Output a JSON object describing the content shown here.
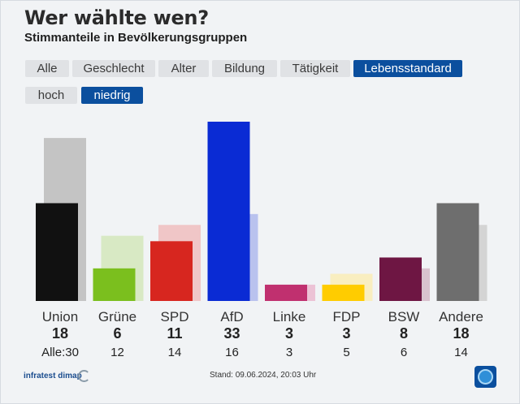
{
  "title": "Wer wählte wen?",
  "subtitle": "Stimmanteile in Bevölkerungsgruppen",
  "tabs": [
    "Alle",
    "Geschlecht",
    "Alter",
    "Bildung",
    "Tätigkeit",
    "Lebensstandard"
  ],
  "active_tab": "Lebensstandard",
  "subtabs": [
    "hoch",
    "niedrig"
  ],
  "active_subtab": "niedrig",
  "alle_label": "Alle:",
  "source": "infratest dimap",
  "stand": "Stand: 09.06.2024, 20:03 Uhr",
  "chart_data": {
    "type": "bar",
    "categories": [
      "Union",
      "Grüne",
      "SPD",
      "AfD",
      "Linke",
      "FDP",
      "BSW",
      "Andere"
    ],
    "series": [
      {
        "name": "niedrig",
        "values": [
          18,
          6,
          11,
          33,
          3,
          3,
          8,
          18
        ]
      },
      {
        "name": "Alle",
        "values": [
          30,
          12,
          14,
          16,
          3,
          5,
          6,
          14
        ]
      }
    ],
    "colors": [
      "#111111",
      "#7bbf1e",
      "#d7261f",
      "#0a2bd4",
      "#c0306f",
      "#ffcc00",
      "#6e1643",
      "#6e6e6e"
    ],
    "faded_colors": [
      "#c4c4c4",
      "#d8e9c4",
      "#f0c6c7",
      "#b9c2ee",
      "#ecc2d5",
      "#f9eec0",
      "#d9c2ce",
      "#d4d4d4"
    ],
    "ylim": [
      0,
      33
    ]
  }
}
